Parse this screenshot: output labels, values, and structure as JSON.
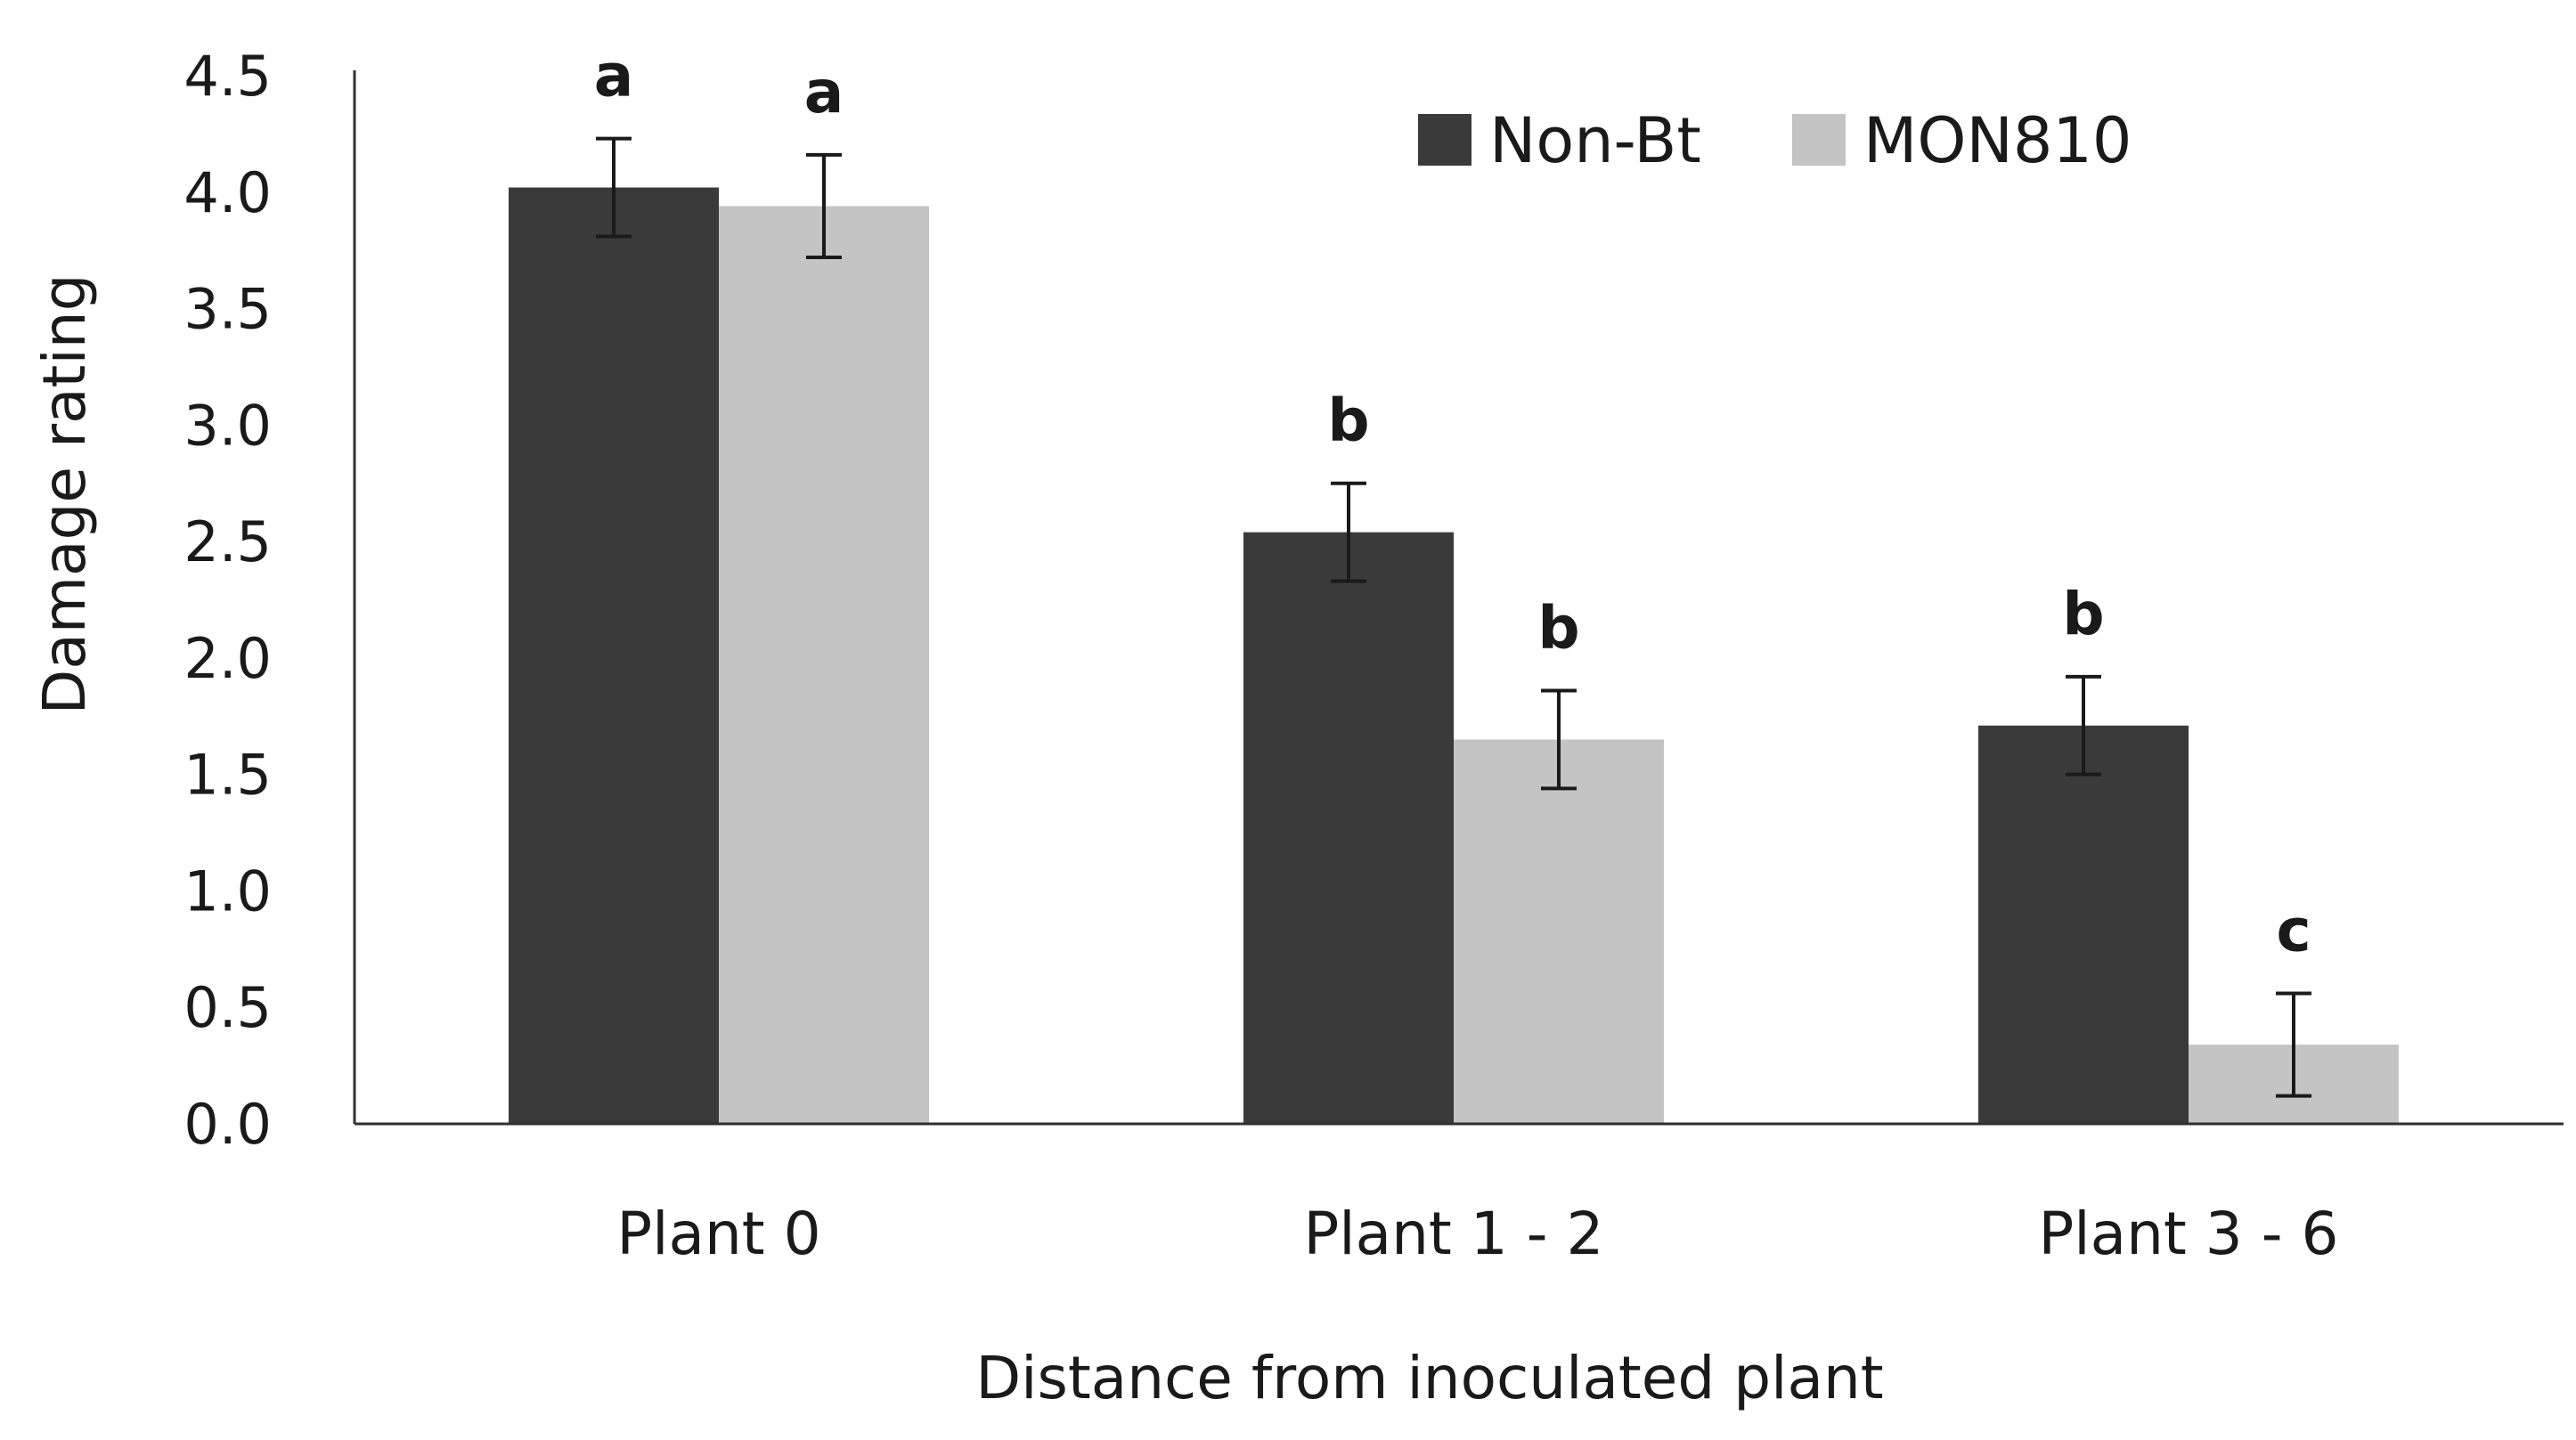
{
  "colors": {
    "non_bt": "#3a3a3a",
    "mon810": "#c4c4c4",
    "axis": "#303030",
    "error_bar": "#1a1a1a",
    "text": "#1a1a1a"
  },
  "chart_data": {
    "type": "bar",
    "title": "",
    "xlabel": "Distance from inoculated plant",
    "ylabel": "Damage rating",
    "ylim": [
      0,
      4.5
    ],
    "ytick_step": 0.5,
    "grid": false,
    "legend_position": "top-right",
    "categories": [
      "Plant 0",
      "Plant 1 - 2",
      "Plant 3 - 6"
    ],
    "series": [
      {
        "name": "Non-Bt",
        "color_key": "non_bt",
        "values": [
          4.02,
          2.54,
          1.71
        ],
        "errors": [
          0.21,
          0.21,
          0.21
        ],
        "letters": [
          "a",
          "b",
          "b"
        ]
      },
      {
        "name": "MON810",
        "color_key": "mon810",
        "values": [
          3.94,
          1.65,
          0.34
        ],
        "errors": [
          0.22,
          0.21,
          0.22
        ],
        "letters": [
          "a",
          "b",
          "c"
        ]
      }
    ]
  }
}
